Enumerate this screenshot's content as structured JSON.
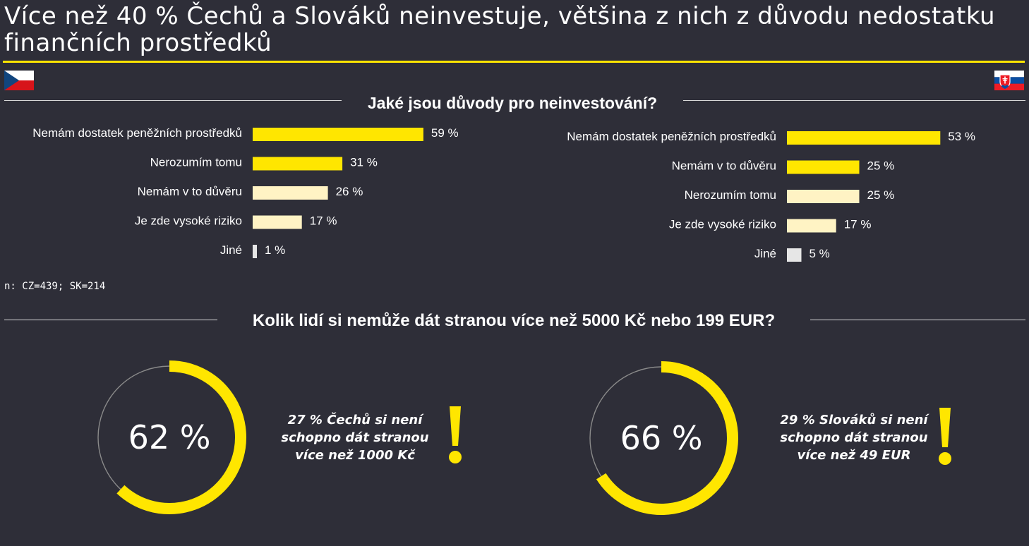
{
  "title": "Více než 40 % Čechů a Slováků neinvestuje, většina z nich z důvodu nedostatku finančních prostředků",
  "colors": {
    "background": "#2e2e38",
    "accent": "#ffe600",
    "light_bar": "#fff3c4",
    "gray_bar": "#e6e6e6",
    "rule": "#d8d8d8"
  },
  "flags": {
    "left": "czech-flag",
    "right": "slovak-flag"
  },
  "section1": {
    "heading": "Jaké jsou důvody pro neinvestování?"
  },
  "section2": {
    "heading": "Kolik lidí si nemůže dát stranou více než 5000 Kč nebo 199 EUR?"
  },
  "sample_note": "n: CZ=439; SK=214",
  "chart_data": [
    {
      "type": "bar",
      "orientation": "horizontal",
      "country": "CZ",
      "title": "Jaké jsou důvody pro neinvestování?",
      "categories": [
        "Nemám dostatek peněžních prostředků",
        "Nerozumím tomu",
        "Nemám v to důvěru",
        "Je zde vysoké riziko",
        "Jiné"
      ],
      "values": [
        59,
        31,
        26,
        17,
        1
      ],
      "value_labels": [
        "59 %",
        "31 %",
        "26 %",
        "17 %",
        "1 %"
      ],
      "bar_colors": [
        "#ffe600",
        "#ffe600",
        "#fff3c4",
        "#fff3c4",
        "#e6e6e6"
      ],
      "unit": "%"
    },
    {
      "type": "bar",
      "orientation": "horizontal",
      "country": "SK",
      "title": "Jaké jsou důvody pro neinvestování?",
      "categories": [
        "Nemám dostatek peněžních prostředků",
        "Nemám v to důvěru",
        "Nerozumím tomu",
        "Je zde vysoké riziko",
        "Jiné"
      ],
      "values": [
        53,
        25,
        25,
        17,
        5
      ],
      "value_labels": [
        "53 %",
        "25 %",
        "25 %",
        "17 %",
        "5 %"
      ],
      "bar_colors": [
        "#ffe600",
        "#ffe600",
        "#fff3c4",
        "#fff3c4",
        "#e6e6e6"
      ],
      "unit": "%"
    },
    {
      "type": "pie",
      "variant": "donut",
      "country": "CZ",
      "title": "Kolik lidí si nemůže dát stranou více než 5000 Kč nebo 199 EUR?",
      "value": 62,
      "label": "62 %",
      "note": "27 % Čechů si není schopno dát stranou více než 1000 Kč"
    },
    {
      "type": "pie",
      "variant": "donut",
      "country": "SK",
      "title": "Kolik lidí si nemůže dát stranou více než 5000 Kč nebo 199 EUR?",
      "value": 66,
      "label": "66 %",
      "note": "29 % Slováků si není schopno dát stranou více než 49 EUR"
    }
  ]
}
